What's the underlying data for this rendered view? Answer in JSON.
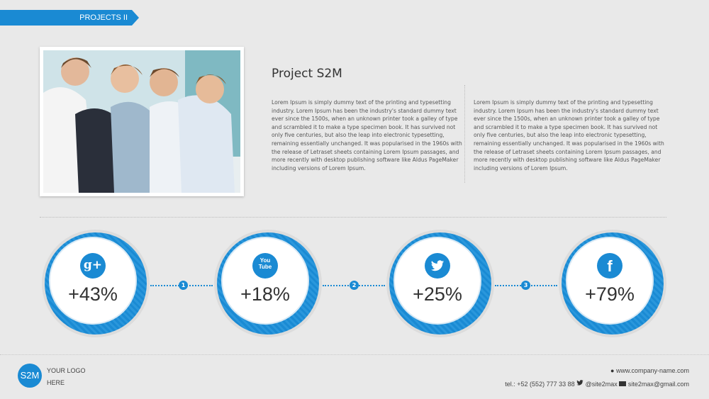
{
  "header": {
    "section_label": "PROJECTS II"
  },
  "project": {
    "title": "Project S2M",
    "paragraphs": [
      "Lorem Ipsum is simply dummy text of the printing and typesetting industry. Lorem Ipsum has been the industry's standard dummy text ever since the 1500s, when an unknown printer took a galley of type and scrambled it to make a type specimen book. It has survived not only five centuries, but also the leap into electronic typesetting, remaining essentially unchanged. It was popularised in the 1960s with the release of Letraset sheets containing Lorem Ipsum passages, and more recently with desktop publishing software like Aldus PageMaker including versions of Lorem Ipsum.",
      "Lorem Ipsum is simply dummy text of the printing and typesetting industry. Lorem Ipsum has been the industry's standard dummy text ever since the 1500s, when an unknown printer took a galley of type and scrambled it to make a type specimen book. It has survived not only five centuries, but also the leap into electronic typesetting, remaining essentially unchanged. It was popularised in the 1960s with the release of Letraset sheets containing Lorem Ipsum passages, and more recently with desktop publishing software like Aldus PageMaker including versions of Lorem Ipsum."
    ]
  },
  "stats": [
    {
      "icon": "google-plus-icon",
      "glyph": "g+",
      "value": "+43%"
    },
    {
      "icon": "youtube-icon",
      "glyph": "You Tube",
      "value": "+18%"
    },
    {
      "icon": "twitter-icon",
      "glyph": "🐦",
      "value": "+25%"
    },
    {
      "icon": "facebook-icon",
      "glyph": "f",
      "value": "+79%"
    }
  ],
  "steps": [
    "1",
    "2",
    "3"
  ],
  "footer": {
    "logo_text": "S2M",
    "logo_line1": "YOUR LOGO",
    "logo_line2": "HERE",
    "website": "www.company-name.com",
    "phone": "tel.: +52 (552) 777 33 88",
    "twitter": "@site2max",
    "email": "site2max@gmail.com"
  },
  "colors": {
    "accent": "#1a8ad3",
    "background": "#e9e9e9"
  }
}
